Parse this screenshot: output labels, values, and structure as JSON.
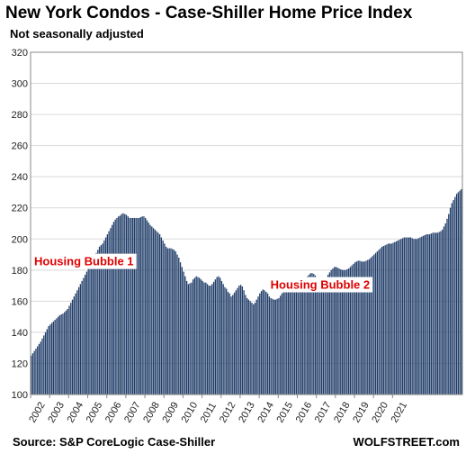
{
  "chart_data": {
    "type": "bar",
    "title": "New York Condos - Case-Shiller Home Price Index",
    "subtitle": "Not seasonally adjusted",
    "source": "Source: S&P CoreLogic Case-Shiller",
    "brand": "WOLFSTREET.com",
    "bar_color": "#1f3c68",
    "grid": true,
    "ylim": [
      100,
      320
    ],
    "y_ticks": [
      100,
      120,
      140,
      160,
      180,
      200,
      220,
      240,
      260,
      280,
      300,
      320
    ],
    "x_ticks": [
      "2002",
      "2003",
      "2004",
      "2005",
      "2006",
      "2007",
      "2008",
      "2009",
      "2010",
      "2011",
      "2012",
      "2013",
      "2014",
      "2015",
      "2016",
      "2017",
      "2018",
      "2019",
      "2020",
      "2021"
    ],
    "annotations": [
      {
        "label": "Housing Bubble 1",
        "x_year": 2004.8,
        "y": 183
      },
      {
        "label": "Housing Bubble 2",
        "x_year": 2017.2,
        "y": 168
      }
    ],
    "x_start": 2002,
    "step_months": 1,
    "values": [
      125,
      126.5,
      128,
      129.5,
      131,
      132.5,
      134,
      136,
      138,
      140,
      142,
      144,
      145,
      146,
      147,
      148,
      149,
      150,
      151,
      151.5,
      152,
      153,
      154,
      155,
      157,
      159,
      161,
      163,
      165,
      167,
      169,
      171,
      173,
      175,
      177,
      179,
      181,
      183,
      185,
      187,
      189,
      191,
      193,
      195,
      196,
      197,
      199,
      201,
      203,
      205,
      207,
      209,
      211,
      212.5,
      213.5,
      214.5,
      215,
      216,
      216.5,
      216,
      215.5,
      214.5,
      213.5,
      213.5,
      213.5,
      213.5,
      213.5,
      213.5,
      213.5,
      214,
      214.5,
      214.5,
      213.5,
      212,
      210.5,
      209,
      208,
      207,
      206,
      205,
      204,
      203,
      201,
      199,
      197,
      195,
      194,
      194,
      194,
      193.5,
      193,
      192,
      190,
      188,
      185,
      182,
      179,
      176,
      173,
      171,
      171.5,
      172,
      174,
      175,
      176,
      175.5,
      175,
      174,
      173,
      172,
      172,
      171,
      170,
      170,
      171,
      172.5,
      174,
      175.5,
      176,
      175,
      173,
      171,
      169,
      168,
      166,
      165,
      163,
      164,
      165.5,
      167,
      168.5,
      170,
      170.5,
      169.5,
      167,
      164,
      162,
      161,
      160,
      159,
      158,
      159,
      161,
      163,
      165,
      166.5,
      167.5,
      167,
      166,
      165,
      163,
      162,
      161.5,
      161,
      161,
      161.5,
      162,
      163.5,
      165,
      167,
      169.5,
      171,
      172,
      173.5,
      173.5,
      173,
      172.5,
      172.5,
      172,
      172,
      172,
      172.5,
      173.5,
      175,
      176,
      177,
      178,
      178,
      177.5,
      176.5,
      175.5,
      175,
      175,
      175,
      175,
      175,
      175.5,
      177,
      178.5,
      180,
      181,
      182,
      182,
      181.5,
      181,
      180.5,
      180,
      180,
      180,
      180.5,
      181,
      182,
      183,
      184,
      185,
      185.5,
      186,
      186,
      185.5,
      185.5,
      185.5,
      186,
      186.5,
      187,
      188,
      189,
      190,
      191,
      192,
      193,
      194,
      195,
      195.5,
      196,
      196.5,
      197,
      197,
      197,
      197.5,
      198,
      198.5,
      199,
      199.5,
      200,
      200.5,
      201,
      201,
      201,
      201,
      201,
      200.5,
      200,
      200,
      200,
      200.5,
      201,
      201.5,
      202,
      202.5,
      203,
      203,
      203,
      203.5,
      204,
      204,
      204,
      204,
      204.5,
      205,
      206,
      208,
      210,
      213,
      216,
      220,
      223,
      225,
      227,
      229,
      230,
      231,
      232
    ]
  }
}
